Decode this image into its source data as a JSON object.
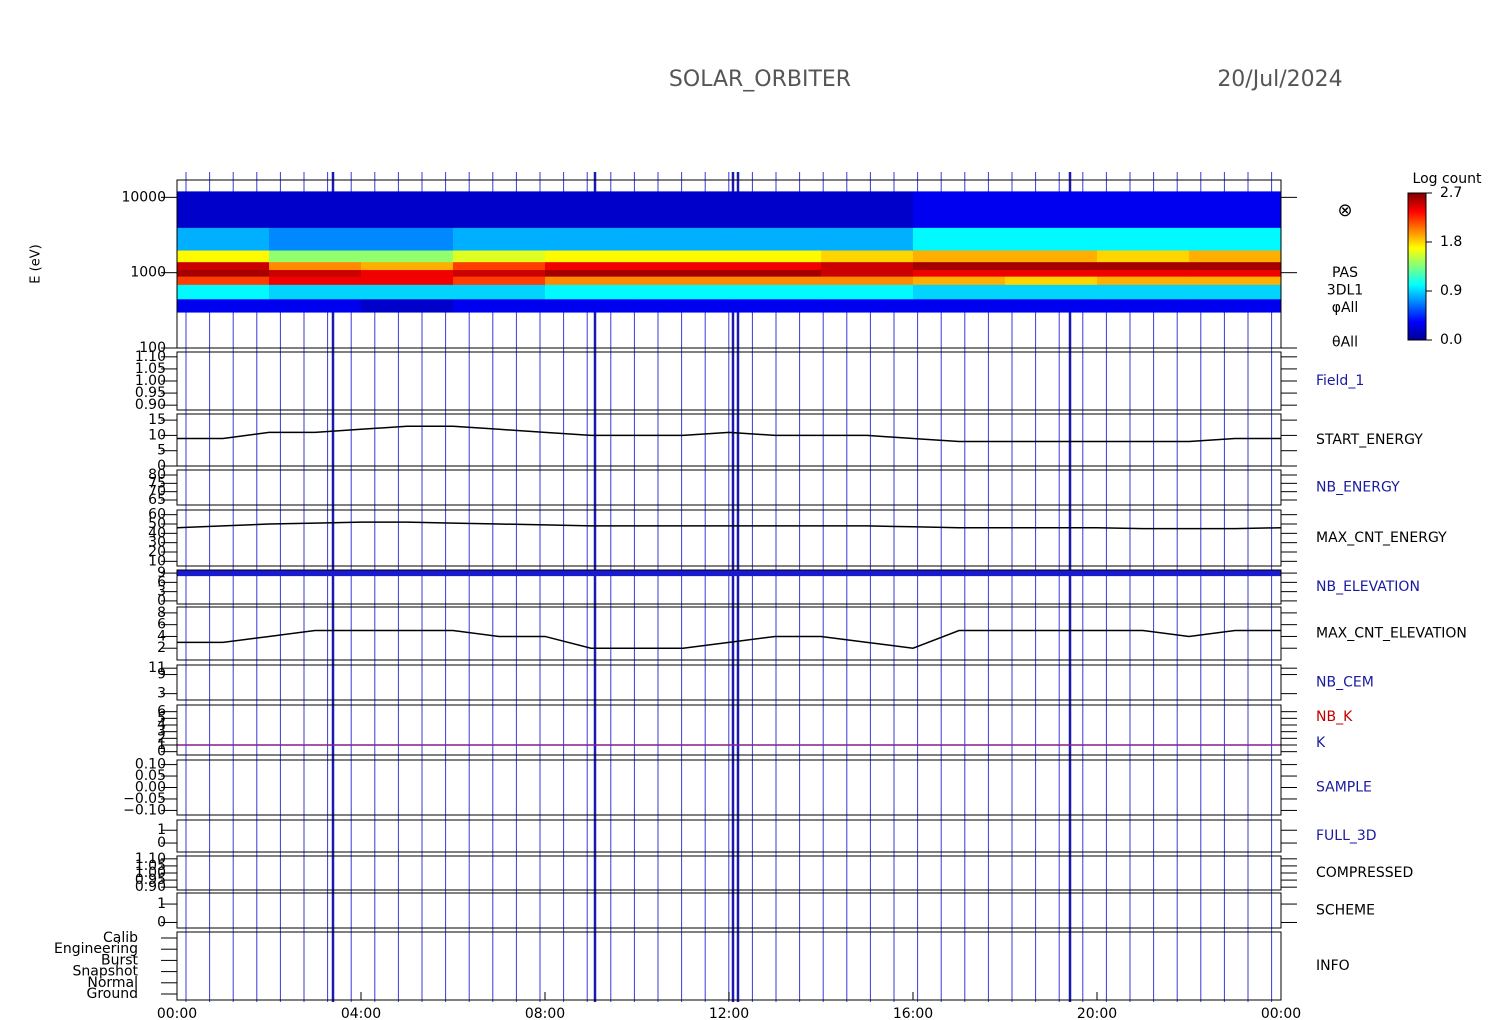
{
  "header": {
    "title": "SOLAR_ORBITER",
    "date": "20/Jul/2024"
  },
  "chart_data": [
    {
      "type": "spectrogram",
      "ylabel": "E (eV)",
      "log_y": true,
      "ylim": [
        100,
        17000
      ],
      "yticks": [
        100,
        1000,
        10000
      ],
      "x_edges": [
        0,
        2,
        4,
        6,
        8,
        10,
        12,
        14,
        16,
        18,
        20,
        22,
        24
      ],
      "energy_edges": [
        300,
        450,
        700,
        900,
        1100,
        1400,
        2000,
        4000,
        12000
      ],
      "values": [
        [
          0.3,
          0.3,
          0.2,
          0.3,
          0.3,
          0.3,
          0.3,
          0.3,
          0.3,
          0.3,
          0.3,
          0.3
        ],
        [
          1.0,
          0.9,
          0.9,
          0.9,
          1.0,
          1.0,
          1.0,
          1.0,
          0.9,
          0.9,
          0.9,
          0.9
        ],
        [
          2.2,
          2.4,
          2.4,
          2.2,
          2.0,
          2.0,
          2.0,
          2.0,
          1.9,
          1.8,
          1.9,
          1.9
        ],
        [
          2.6,
          2.5,
          2.4,
          2.5,
          2.6,
          2.6,
          2.6,
          2.5,
          2.4,
          2.4,
          2.4,
          2.4
        ],
        [
          2.5,
          2.0,
          1.9,
          2.2,
          2.4,
          2.4,
          2.4,
          2.5,
          2.6,
          2.6,
          2.6,
          2.6
        ],
        [
          1.7,
          1.4,
          1.4,
          1.6,
          1.7,
          1.7,
          1.7,
          1.8,
          1.9,
          1.9,
          1.8,
          1.9
        ],
        [
          0.8,
          0.7,
          0.7,
          0.8,
          0.8,
          0.8,
          0.8,
          0.8,
          1.0,
          1.0,
          1.0,
          1.0
        ],
        [
          0.2,
          0.2,
          0.2,
          0.2,
          0.2,
          0.2,
          0.2,
          0.2,
          0.3,
          0.3,
          0.3,
          0.3
        ]
      ],
      "colorbar": {
        "title": "Log count",
        "clim": [
          0,
          2.7
        ],
        "ticks": [
          {
            "value": 0,
            "label": "0.0"
          },
          {
            "value": 0.9,
            "label": "0.9"
          },
          {
            "value": 1.8,
            "label": "1.8"
          },
          {
            "value": 2.7,
            "label": "2.7"
          }
        ]
      },
      "marker": "⊗",
      "labels": [
        "PAS",
        "3DL1",
        "φAll",
        "θAll"
      ],
      "label_colors": [
        "#000000",
        "#000000",
        "#000000",
        "#000000"
      ]
    },
    {
      "type": "empty",
      "ylim": [
        0.88,
        1.12
      ],
      "yticks": [
        {
          "value": 0.9,
          "label": "0.90"
        },
        {
          "value": 0.95,
          "label": "0.95"
        },
        {
          "value": 1.0,
          "label": "1.00"
        },
        {
          "value": 1.05,
          "label": "1.05"
        },
        {
          "value": 1.1,
          "label": "1.10"
        }
      ],
      "labels": [
        "Field_1"
      ],
      "label_colors": [
        "#1a1aa0"
      ]
    },
    {
      "type": "line",
      "ylim": [
        0,
        17
      ],
      "yticks": [
        0,
        5,
        10,
        15
      ],
      "color": "#000000",
      "x": [
        0,
        1,
        2,
        3,
        4,
        5,
        6,
        7,
        8,
        9,
        10,
        11,
        12,
        13,
        14,
        15,
        16,
        17,
        18,
        19,
        20,
        21,
        22,
        23,
        24
      ],
      "values": [
        9,
        9,
        11,
        11,
        12,
        13,
        13,
        12,
        11,
        10,
        10,
        10,
        11,
        10,
        10,
        10,
        9,
        8,
        8,
        8,
        8,
        8,
        8,
        9,
        9
      ],
      "labels": [
        "START_ENERGY"
      ],
      "label_colors": [
        "#000000"
      ]
    },
    {
      "type": "empty",
      "ylim": [
        62,
        83
      ],
      "yticks": [
        65,
        70,
        75,
        80
      ],
      "labels": [
        "NB_ENERGY"
      ],
      "label_colors": [
        "#1a1aa0"
      ]
    },
    {
      "type": "line",
      "ylim": [
        5,
        65
      ],
      "yticks": [
        10,
        20,
        30,
        40,
        50,
        60
      ],
      "color": "#000000",
      "x": [
        0,
        1,
        2,
        3,
        4,
        5,
        6,
        7,
        8,
        9,
        10,
        11,
        12,
        13,
        14,
        15,
        16,
        17,
        18,
        19,
        20,
        21,
        22,
        23,
        24
      ],
      "values": [
        46,
        48,
        50,
        51,
        52,
        52,
        51,
        50,
        49,
        48,
        48,
        48,
        48,
        48,
        48,
        48,
        47,
        46,
        46,
        46,
        46,
        45,
        45,
        45,
        46
      ],
      "labels": [
        "MAX_CNT_ENERGY"
      ],
      "label_colors": [
        "#000000"
      ]
    },
    {
      "type": "line",
      "ylim": [
        -1,
        10
      ],
      "yticks": [
        0,
        3,
        6,
        9
      ],
      "color": "#1a1ad0",
      "thick": true,
      "x": [
        0,
        1,
        2,
        3,
        4,
        5,
        6,
        7,
        8,
        9,
        10,
        11,
        12,
        13,
        14,
        15,
        16,
        17,
        18,
        19,
        20,
        21,
        22,
        23,
        24
      ],
      "values": [
        9,
        9,
        9,
        9,
        9,
        9,
        9,
        9,
        9,
        9,
        9,
        9,
        9,
        9,
        9,
        9,
        9,
        9,
        9,
        9,
        9,
        9,
        9,
        9,
        9
      ],
      "labels": [
        "NB_ELEVATION"
      ],
      "label_colors": [
        "#1a1aa0"
      ]
    },
    {
      "type": "line",
      "ylim": [
        0,
        9
      ],
      "yticks": [
        2,
        4,
        6,
        8
      ],
      "color": "#000000",
      "x": [
        0,
        1,
        2,
        3,
        4,
        5,
        6,
        7,
        8,
        9,
        10,
        11,
        12,
        13,
        14,
        15,
        16,
        17,
        18,
        19,
        20,
        21,
        22,
        23,
        24
      ],
      "values": [
        3,
        3,
        4,
        5,
        5,
        5,
        5,
        4,
        4,
        2,
        2,
        2,
        3,
        4,
        4,
        3,
        2,
        5,
        5,
        5,
        5,
        5,
        4,
        5,
        5
      ],
      "labels": [
        "MAX_CNT_ELEVATION"
      ],
      "label_colors": [
        "#000000"
      ]
    },
    {
      "type": "empty",
      "ylim": [
        1,
        12
      ],
      "yticks": [
        3,
        9,
        11
      ],
      "labels": [
        "NB_CEM"
      ],
      "label_colors": [
        "#1a1aa0"
      ]
    },
    {
      "type": "line",
      "ylim": [
        -0.5,
        7
      ],
      "yticks": [
        0,
        1,
        2,
        3,
        4,
        5,
        6
      ],
      "color": "#8b1a8b",
      "x": [
        0,
        1,
        2,
        3,
        4,
        5,
        6,
        7,
        8,
        9,
        10,
        11,
        12,
        13,
        14,
        15,
        16,
        17,
        18,
        19,
        20,
        21,
        22,
        23,
        24
      ],
      "values": [
        1,
        1,
        1,
        1,
        1,
        1,
        1,
        1,
        1,
        1,
        1,
        1,
        1,
        1,
        1,
        1,
        1,
        1,
        1,
        1,
        1,
        1,
        1,
        1,
        1
      ],
      "labels": [
        "NB_K",
        "K"
      ],
      "label_colors": [
        "#c00000",
        "#1a1aa0"
      ]
    },
    {
      "type": "empty",
      "ylim": [
        -0.12,
        0.12
      ],
      "yticks": [
        {
          "value": -0.1,
          "label": "−0.10"
        },
        {
          "value": -0.05,
          "label": "−0.05"
        },
        {
          "value": 0,
          "label": "0.00"
        },
        {
          "value": 0.05,
          "label": "0.05"
        },
        {
          "value": 0.1,
          "label": "0.10"
        }
      ],
      "labels": [
        "SAMPLE"
      ],
      "label_colors": [
        "#1a1aa0"
      ]
    },
    {
      "type": "empty",
      "ylim": [
        -0.7,
        1.8
      ],
      "yticks": [
        0,
        1
      ],
      "labels": [
        "FULL_3D"
      ],
      "label_colors": [
        "#1a1aa0"
      ]
    },
    {
      "type": "empty",
      "ylim": [
        0.88,
        1.12
      ],
      "yticks": [
        {
          "value": 0.9,
          "label": "0.90"
        },
        {
          "value": 0.95,
          "label": "0.95"
        },
        {
          "value": 1.0,
          "label": "1.00"
        },
        {
          "value": 1.05,
          "label": "1.05"
        },
        {
          "value": 1.1,
          "label": "1.10"
        }
      ],
      "labels": [
        "COMPRESSED"
      ],
      "label_colors": [
        "#000000"
      ]
    },
    {
      "type": "empty",
      "ylim": [
        -0.3,
        1.6
      ],
      "yticks": [
        0,
        1
      ],
      "labels": [
        "SCHEME"
      ],
      "label_colors": [
        "#000000"
      ]
    },
    {
      "type": "categorical",
      "categories": [
        "Ground",
        "Normal",
        "Snapshot",
        "Burst",
        "Engineering",
        "Calib"
      ],
      "xlim": [
        0,
        24
      ],
      "xticks": [
        {
          "value": 0,
          "label": "00:00"
        },
        {
          "value": 4,
          "label": "04:00"
        },
        {
          "value": 8,
          "label": "08:00"
        },
        {
          "value": 12,
          "label": "12:00"
        },
        {
          "value": 16,
          "label": "16:00"
        },
        {
          "value": 20,
          "label": "20:00"
        },
        {
          "value": 24,
          "label": "00:00"
        }
      ],
      "labels": [
        "INFO"
      ],
      "label_colors": [
        "#000000"
      ]
    }
  ]
}
